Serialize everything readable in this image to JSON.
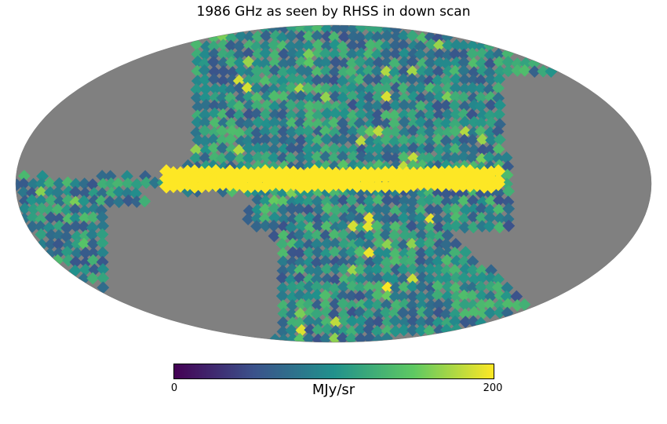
{
  "title": "1986 GHz as seen by RHSS in down scan",
  "projection": "mollweide",
  "colormap": {
    "name": "viridis",
    "stops": [
      "#440154",
      "#3b528b",
      "#21918c",
      "#5ec962",
      "#fde725"
    ]
  },
  "colorbar": {
    "min_label": "0",
    "max_label": "200",
    "unit_label": "MJy/sr",
    "range": [
      0,
      200
    ]
  },
  "missing_color": "#808080",
  "galactic_plane_color": "#fde725"
}
